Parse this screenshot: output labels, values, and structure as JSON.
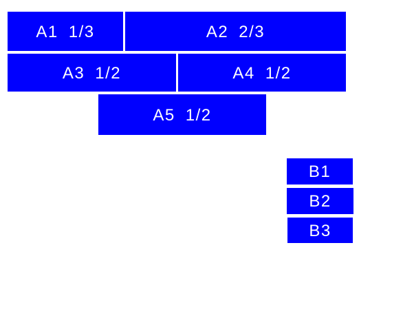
{
  "figure": {
    "background_color": "#ffffff",
    "box_fill_color": "#0000ff",
    "label_color": "#ffffff"
  },
  "boxes": {
    "a1": {
      "label": "A1",
      "fraction": "1/3"
    },
    "a2": {
      "label": "A2",
      "fraction": "2/3"
    },
    "a3": {
      "label": "A3",
      "fraction": "1/2"
    },
    "a4": {
      "label": "A4",
      "fraction": "1/2"
    },
    "a5": {
      "label": "A5",
      "fraction": "1/2"
    },
    "b1": {
      "label": "B1"
    },
    "b2": {
      "label": "B2"
    },
    "b3": {
      "label": "B3"
    }
  }
}
